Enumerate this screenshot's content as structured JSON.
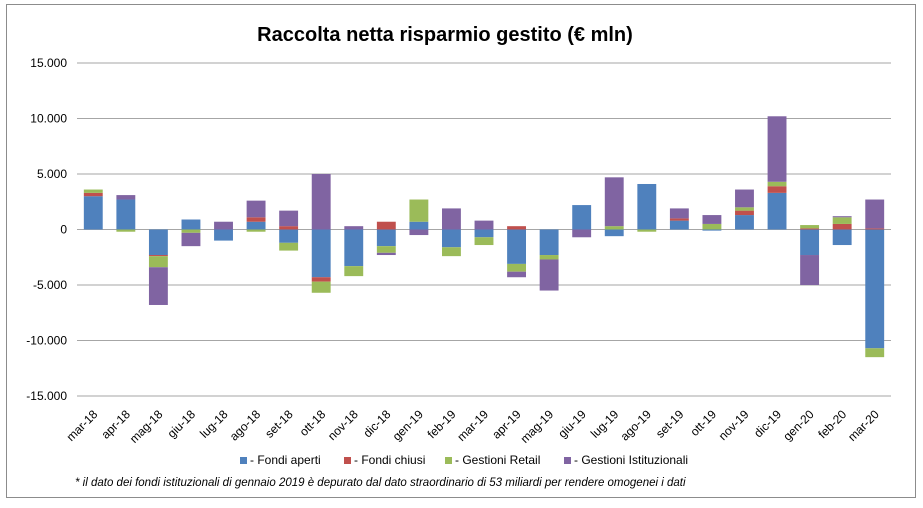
{
  "chart_data": {
    "type": "bar",
    "stacked": true,
    "title": "Raccolta netta risparmio gestito (€ mln)",
    "ylim": [
      -15000,
      15000
    ],
    "yticks": [
      15000,
      10000,
      5000,
      0,
      -5000,
      -10000,
      -15000
    ],
    "ytick_labels": [
      "15.000",
      "10.000",
      "5.000",
      "0",
      "-5.000",
      "-10.000",
      "-15.000"
    ],
    "grid": true,
    "legend_position": "bottom",
    "categories": [
      "mar-18",
      "apr-18",
      "mag-18",
      "giu-18",
      "lug-18",
      "ago-18",
      "set-18",
      "ott-18",
      "nov-18",
      "dic-18",
      "gen-19",
      "feb-19",
      "mar-19",
      "apr-19",
      "mag-19",
      "giu-19",
      "lug-19",
      "ago-19",
      "set-19",
      "ott-19",
      "nov-19",
      "dic-19",
      "gen-20",
      "feb-20",
      "mar-20"
    ],
    "series": [
      {
        "name": "- Fondi aperti",
        "color": "#4f81bd",
        "values": [
          3000,
          2700,
          -2300,
          900,
          -1000,
          700,
          -1200,
          -4300,
          -3300,
          -1500,
          700,
          -1600,
          -700,
          -3100,
          -2300,
          2200,
          -600,
          4100,
          800,
          -100,
          1300,
          3300,
          -2300,
          -1400,
          -10700
        ]
      },
      {
        "name": "- Fondi chiusi",
        "color": "#c0504d",
        "values": [
          300,
          0,
          -100,
          0,
          0,
          400,
          300,
          -400,
          0,
          700,
          0,
          0,
          0,
          300,
          0,
          0,
          0,
          0,
          200,
          0,
          400,
          600,
          100,
          500,
          100
        ]
      },
      {
        "name": "- Gestioni Retail",
        "color": "#9bbb59",
        "values": [
          300,
          -200,
          -1000,
          -300,
          0,
          -200,
          -700,
          -1000,
          -900,
          -600,
          2000,
          -800,
          -700,
          -700,
          -400,
          0,
          300,
          -200,
          0,
          500,
          300,
          400,
          300,
          600,
          -800
        ]
      },
      {
        "name": "- Gestioni Istituzionali",
        "color": "#8064a2",
        "values": [
          0,
          400,
          -3400,
          -1200,
          700,
          1500,
          1400,
          5000,
          300,
          -200,
          -500,
          1900,
          800,
          -500,
          -2800,
          -700,
          4400,
          0,
          900,
          800,
          1600,
          5900,
          -2700,
          100,
          2600
        ]
      }
    ],
    "footnote": "* il dato dei fondi istituzionali di gennaio 2019 è depurato dal dato straordinario  di 53 miliardi  per rendere  omogenei i dati"
  }
}
